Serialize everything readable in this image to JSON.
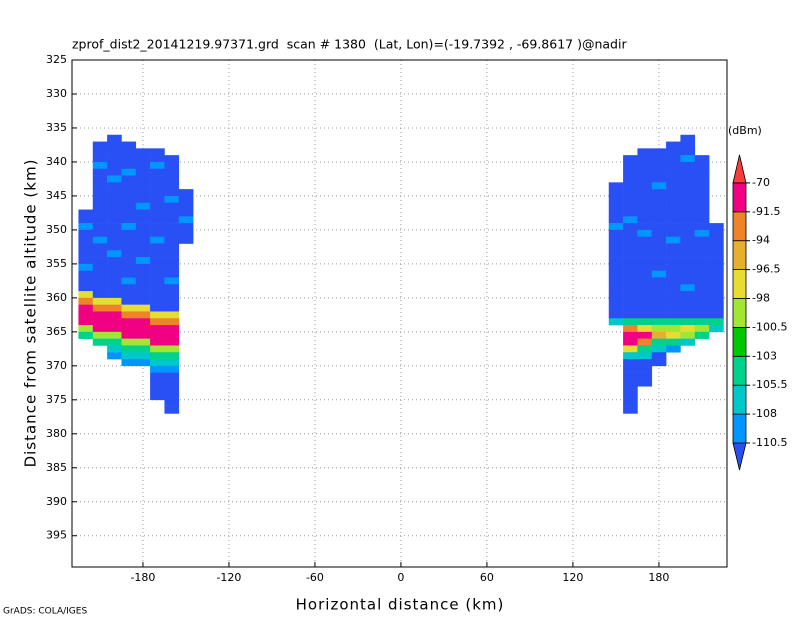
{
  "chart_data": {
    "type": "heatmap",
    "title": "zprof_dist2_20141219.97371.grd  scan # 1380  (Lat, Lon)=(-19.7392 , -69.8617 )@nadir",
    "x_label": "Horizontal distance (km)",
    "y_label": "Distance from satellite altitude (km)",
    "footer": "GrADS: COLA/IGES",
    "xlim": [
      -229.5,
      227.5
    ],
    "xticks": [
      -180,
      -120,
      -60,
      0,
      60,
      120,
      180
    ],
    "ylim": [
      325,
      399.6
    ],
    "y_inverted": true,
    "yticks": [
      325,
      330,
      335,
      340,
      345,
      350,
      355,
      360,
      365,
      370,
      375,
      380,
      385,
      390,
      395
    ],
    "grid": true,
    "colorbar": {
      "unit": "(dBm)",
      "levels": [
        -110.5,
        -108,
        -105.5,
        -103,
        -100.5,
        -98,
        -96.5,
        -94,
        -91.5,
        -70
      ],
      "colors": [
        "#2850f5",
        "#0096ff",
        "#00c8c8",
        "#00d28c",
        "#00c800",
        "#a0e632",
        "#e6dc32",
        "#e6af2d",
        "#f08228",
        "#f00082",
        "#fa3c3c"
      ]
    },
    "swaths": [
      {
        "x_edges": [
          -225,
          -215,
          -205,
          -195,
          -185,
          -175,
          -165,
          -155,
          -145
        ],
        "columns": [
          {
            "top": 347,
            "values": [
              -112,
              -112,
              -109,
              -112,
              -112,
              -112,
              -112,
              -112,
              -109,
              -112,
              -112,
              -112,
              -97,
              -93,
              -85,
              -85,
              -85,
              -99,
              -104
            ]
          },
          {
            "top": 337,
            "values": [
              -112,
              -112,
              -112,
              -109,
              -112,
              -112,
              -112,
              -112,
              -112,
              -112,
              -112,
              -112,
              -112,
              -112,
              -109,
              -112,
              -112,
              -112,
              -112,
              -112,
              -112,
              -112,
              -112,
              -97,
              -93,
              -85,
              -85,
              -85,
              -99,
              -104
            ]
          },
          {
            "top": 336,
            "values": [
              -112,
              -112,
              -112,
              -112,
              -112,
              -112,
              -109,
              -112,
              -112,
              -112,
              -112,
              -112,
              -112,
              -112,
              -112,
              -112,
              -112,
              -109,
              -112,
              -112,
              -112,
              -112,
              -112,
              -112,
              -97,
              -93,
              -85,
              -85,
              -85,
              -99,
              -104,
              -107,
              -109
            ]
          },
          {
            "top": 337,
            "values": [
              -112,
              -112,
              -112,
              -112,
              -109,
              -112,
              -112,
              -112,
              -112,
              -112,
              -112,
              -112,
              -109,
              -112,
              -112,
              -112,
              -112,
              -112,
              -112,
              -112,
              -109,
              -112,
              -112,
              -112,
              -97,
              -93,
              -85,
              -85,
              -85,
              -99,
              -104,
              -107,
              -109
            ]
          },
          {
            "top": 338,
            "values": [
              -112,
              -112,
              -112,
              -112,
              -112,
              -112,
              -112,
              -112,
              -109,
              -112,
              -112,
              -112,
              -112,
              -112,
              -112,
              -112,
              -109,
              -112,
              -112,
              -112,
              -112,
              -112,
              -112,
              -97,
              -93,
              -85,
              -85,
              -85,
              -99,
              -104,
              -107,
              -109
            ]
          },
          {
            "top": 338,
            "values": [
              -112,
              -112,
              -109,
              -112,
              -112,
              -112,
              -112,
              -112,
              -112,
              -112,
              -112,
              -112,
              -112,
              -109,
              -112,
              -112,
              -112,
              -112,
              -112,
              -112,
              -112,
              -112,
              -112,
              -112,
              -97,
              -93,
              -85,
              -85,
              -85,
              -99,
              -104,
              -107,
              -109,
              -112,
              -112,
              -112,
              -112
            ]
          },
          {
            "top": 339,
            "values": [
              -112,
              -112,
              -112,
              -112,
              -112,
              -112,
              -109,
              -112,
              -112,
              -112,
              -112,
              -112,
              -112,
              -112,
              -112,
              -112,
              -112,
              -112,
              -109,
              -112,
              -112,
              -112,
              -112,
              -97,
              -93,
              -85,
              -85,
              -85,
              -99,
              -104,
              -107,
              -109,
              -112,
              -112,
              -112,
              -112,
              -112,
              -112
            ]
          },
          {
            "top": 344,
            "values": [
              -112,
              -112,
              -112,
              -112,
              -109,
              -112,
              -112,
              -112
            ]
          }
        ]
      },
      {
        "x_edges": [
          145,
          155,
          165,
          175,
          185,
          195,
          205,
          215,
          225
        ],
        "columns": [
          {
            "top": 343,
            "values": [
              -112,
              -112,
              -112,
              -112,
              -112,
              -112,
              -109,
              -112,
              -112,
              -112,
              -112,
              -112,
              -112,
              -112,
              -112,
              -112,
              -112,
              -112,
              -112,
              -112,
              -107
            ]
          },
          {
            "top": 339,
            "values": [
              -112,
              -112,
              -112,
              -112,
              -112,
              -112,
              -112,
              -112,
              -112,
              -109,
              -112,
              -112,
              -112,
              -112,
              -112,
              -112,
              -112,
              -112,
              -112,
              -112,
              -112,
              -112,
              -112,
              -112,
              -104,
              -93,
              -85,
              -85,
              -97,
              -107,
              -112,
              -112,
              -112,
              -112,
              -112,
              -112,
              -112,
              -112
            ]
          },
          {
            "top": 338,
            "values": [
              -112,
              -112,
              -112,
              -112,
              -112,
              -112,
              -112,
              -112,
              -112,
              -112,
              -112,
              -112,
              -109,
              -112,
              -112,
              -112,
              -112,
              -112,
              -112,
              -112,
              -112,
              -112,
              -112,
              -112,
              -112,
              -104,
              -97,
              -85,
              -93,
              -104,
              -107,
              -112,
              -112,
              -112,
              -112
            ]
          },
          {
            "top": 338,
            "values": [
              -112,
              -112,
              -112,
              -112,
              -112,
              -109,
              -112,
              -112,
              -112,
              -112,
              -112,
              -112,
              -112,
              -112,
              -112,
              -112,
              -112,
              -112,
              -109,
              -112,
              -112,
              -112,
              -112,
              -112,
              -112,
              -104,
              -99,
              -95,
              -104,
              -107,
              -112,
              -112
            ]
          },
          {
            "top": 337,
            "values": [
              -112,
              -112,
              -112,
              -112,
              -112,
              -112,
              -112,
              -112,
              -112,
              -112,
              -112,
              -112,
              -112,
              -112,
              -109,
              -112,
              -112,
              -112,
              -112,
              -112,
              -112,
              -112,
              -112,
              -112,
              -112,
              -112,
              -104,
              -99,
              -97,
              -104,
              -109
            ]
          },
          {
            "top": 336,
            "values": [
              -112,
              -112,
              -112,
              -109,
              -112,
              -112,
              -112,
              -112,
              -112,
              -112,
              -112,
              -112,
              -112,
              -112,
              -112,
              -112,
              -112,
              -112,
              -112,
              -112,
              -112,
              -112,
              -109,
              -112,
              -112,
              -112,
              -112,
              -104,
              -97,
              -99,
              -107
            ]
          },
          {
            "top": 339,
            "values": [
              -112,
              -112,
              -112,
              -112,
              -112,
              -112,
              -112,
              -112,
              -112,
              -112,
              -112,
              -109,
              -112,
              -112,
              -112,
              -112,
              -112,
              -112,
              -112,
              -112,
              -112,
              -112,
              -112,
              -112,
              -104,
              -99,
              -104
            ]
          },
          {
            "top": 349,
            "values": [
              -112,
              -112,
              -112,
              -112,
              -112,
              -112,
              -112,
              -112,
              -112,
              -112,
              -112,
              -112,
              -112,
              -112,
              -104,
              -107
            ]
          }
        ]
      }
    ]
  }
}
